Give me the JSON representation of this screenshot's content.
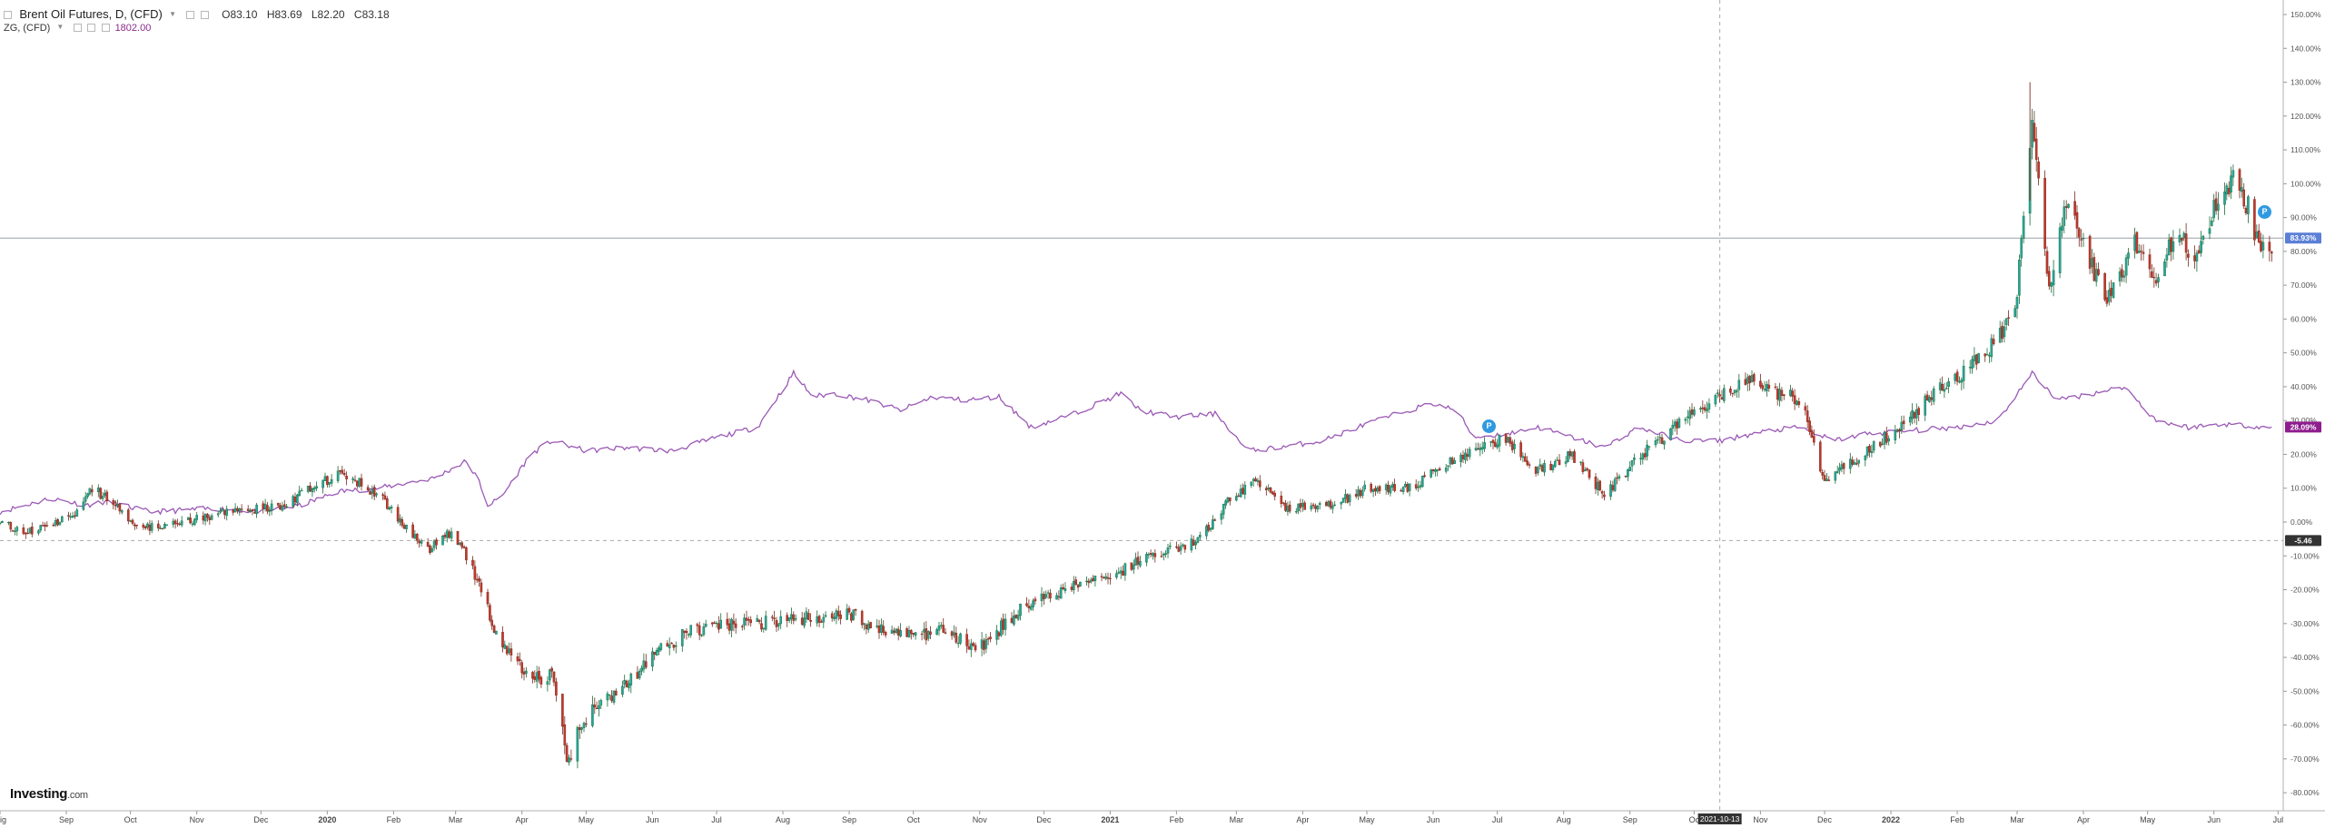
{
  "legend": {
    "instrument": "Brent Oil Futures, D, (CFD)",
    "open": "O83.10",
    "high": "H83.69",
    "low": "L82.20",
    "close": "C83.18",
    "compare_symbol": "ZG, (CFD)",
    "compare_value": "1802.00"
  },
  "logo": {
    "name": "Investing",
    "suffix": ".com"
  },
  "crosshair_date_label": "2021-10-13",
  "markers": {
    "label": "P"
  },
  "colors": {
    "up": "#26a69a",
    "up_dark": "#1b6b3a",
    "down": "#c0392b",
    "down_dark": "#7a2a1e",
    "compare_line": "#9b59b6",
    "price_badge": "#5b7fd6",
    "compare_badge": "#8e1d8e",
    "baseline_badge": "#333333"
  },
  "chart_data": {
    "type": "line",
    "title": "",
    "xlabel": "",
    "ylabel": "",
    "y_unit": "percent change",
    "ylim": [
      -80,
      150
    ],
    "y_ticks": [
      "150.00%",
      "140.00%",
      "130.00%",
      "120.00%",
      "110.00%",
      "100.00%",
      "90.00%",
      "80.00%",
      "70.00%",
      "60.00%",
      "50.00%",
      "40.00%",
      "30.00%",
      "20.00%",
      "10.00%",
      "0.00%",
      "-10.00%",
      "-20.00%",
      "-30.00%",
      "-40.00%",
      "-50.00%",
      "-60.00%",
      "-70.00%",
      "-80.00%"
    ],
    "x_range": [
      "2019-08-01",
      "2022-06-30"
    ],
    "x_ticks": [
      {
        "label": "ig",
        "date": "2019-08-01"
      },
      {
        "label": "Sep",
        "date": "2019-09-01"
      },
      {
        "label": "Oct",
        "date": "2019-10-01"
      },
      {
        "label": "Nov",
        "date": "2019-11-01"
      },
      {
        "label": "Dec",
        "date": "2019-12-01"
      },
      {
        "label": "2020",
        "date": "2020-01-01"
      },
      {
        "label": "Feb",
        "date": "2020-02-01"
      },
      {
        "label": "Mar",
        "date": "2020-03-01"
      },
      {
        "label": "Apr",
        "date": "2020-04-01"
      },
      {
        "label": "May",
        "date": "2020-05-01"
      },
      {
        "label": "Jun",
        "date": "2020-06-01"
      },
      {
        "label": "Jul",
        "date": "2020-07-01"
      },
      {
        "label": "Aug",
        "date": "2020-08-01"
      },
      {
        "label": "Sep",
        "date": "2020-09-01"
      },
      {
        "label": "Oct",
        "date": "2020-10-01"
      },
      {
        "label": "Nov",
        "date": "2020-11-01"
      },
      {
        "label": "Dec",
        "date": "2020-12-01"
      },
      {
        "label": "2021",
        "date": "2021-01-01"
      },
      {
        "label": "Feb",
        "date": "2021-02-01"
      },
      {
        "label": "Mar",
        "date": "2021-03-01"
      },
      {
        "label": "Apr",
        "date": "2021-04-01"
      },
      {
        "label": "May",
        "date": "2021-05-01"
      },
      {
        "label": "Jun",
        "date": "2021-06-01"
      },
      {
        "label": "Jul",
        "date": "2021-07-01"
      },
      {
        "label": "Aug",
        "date": "2021-08-01"
      },
      {
        "label": "Sep",
        "date": "2021-09-01"
      },
      {
        "label": "Oc",
        "date": "2021-10-01"
      },
      {
        "label": "Nov",
        "date": "2021-11-01"
      },
      {
        "label": "Dec",
        "date": "2021-12-01"
      },
      {
        "label": "2022",
        "date": "2022-01-01"
      },
      {
        "label": "Feb",
        "date": "2022-02-01"
      },
      {
        "label": "Mar",
        "date": "2022-03-01"
      },
      {
        "label": "Apr",
        "date": "2022-04-01"
      },
      {
        "label": "May",
        "date": "2022-05-01"
      },
      {
        "label": "Jun",
        "date": "2022-06-01"
      },
      {
        "label": "Jul",
        "date": "2022-07-01"
      }
    ],
    "bold_x_ticks": [
      "2020",
      "2021",
      "2022"
    ],
    "badges": {
      "last_price": {
        "label": "83.93%",
        "value": 83.93
      },
      "compare_last": {
        "label": "28.09%",
        "value": 28.09
      },
      "baseline": {
        "label": "-5.46",
        "value": -5.46
      }
    },
    "crosshair_date": "2021-10-13",
    "grid": false,
    "series": [
      {
        "kind": "candlestick",
        "anchors": [
          [
            "2019-08-01",
            0
          ],
          [
            "2019-08-15",
            -3
          ],
          [
            "2019-09-05",
            2
          ],
          [
            "2019-09-13",
            10
          ],
          [
            "2019-09-20",
            7
          ],
          [
            "2019-10-05",
            -2
          ],
          [
            "2019-10-25",
            0
          ],
          [
            "2019-11-15",
            3
          ],
          [
            "2019-12-10",
            5
          ],
          [
            "2019-12-25",
            10
          ],
          [
            "2020-01-06",
            14
          ],
          [
            "2020-01-15",
            12
          ],
          [
            "2020-01-25",
            8
          ],
          [
            "2020-02-08",
            -3
          ],
          [
            "2020-02-18",
            -8
          ],
          [
            "2020-02-28",
            -3
          ],
          [
            "2020-03-06",
            -10
          ],
          [
            "2020-03-14",
            -22
          ],
          [
            "2020-03-22",
            -36
          ],
          [
            "2020-03-31",
            -42
          ],
          [
            "2020-04-10",
            -46
          ],
          [
            "2020-04-15",
            -45
          ],
          [
            "2020-04-22",
            -70
          ],
          [
            "2020-05-01",
            -58
          ],
          [
            "2020-05-15",
            -50
          ],
          [
            "2020-06-01",
            -40
          ],
          [
            "2020-06-15",
            -33
          ],
          [
            "2020-07-01",
            -31
          ],
          [
            "2020-07-20",
            -30
          ],
          [
            "2020-08-15",
            -28
          ],
          [
            "2020-09-01",
            -27
          ],
          [
            "2020-09-15",
            -32
          ],
          [
            "2020-10-01",
            -34
          ],
          [
            "2020-10-15",
            -32
          ],
          [
            "2020-11-01",
            -37
          ],
          [
            "2020-11-20",
            -26
          ],
          [
            "2020-12-10",
            -20
          ],
          [
            "2021-01-01",
            -16
          ],
          [
            "2021-01-20",
            -10
          ],
          [
            "2021-02-10",
            -6
          ],
          [
            "2021-02-25",
            6
          ],
          [
            "2021-03-10",
            13
          ],
          [
            "2021-03-25",
            4
          ],
          [
            "2021-04-15",
            5
          ],
          [
            "2021-05-01",
            10
          ],
          [
            "2021-05-20",
            10
          ],
          [
            "2021-06-15",
            20
          ],
          [
            "2021-07-05",
            25
          ],
          [
            "2021-07-20",
            15
          ],
          [
            "2021-08-05",
            20
          ],
          [
            "2021-08-20",
            8
          ],
          [
            "2021-09-10",
            22
          ],
          [
            "2021-10-01",
            32
          ],
          [
            "2021-10-25",
            42
          ],
          [
            "2021-11-10",
            38
          ],
          [
            "2021-11-20",
            36
          ],
          [
            "2021-12-01",
            12
          ],
          [
            "2021-12-15",
            18
          ],
          [
            "2022-01-05",
            28
          ],
          [
            "2022-01-25",
            40
          ],
          [
            "2022-02-15",
            50
          ],
          [
            "2022-02-28",
            62
          ],
          [
            "2022-03-08",
            118
          ],
          [
            "2022-03-16",
            70
          ],
          [
            "2022-03-24",
            95
          ],
          [
            "2022-04-01",
            82
          ],
          [
            "2022-04-12",
            65
          ],
          [
            "2022-04-25",
            82
          ],
          [
            "2022-05-05",
            70
          ],
          [
            "2022-05-15",
            88
          ],
          [
            "2022-05-22",
            76
          ],
          [
            "2022-06-01",
            92
          ],
          [
            "2022-06-10",
            102
          ],
          [
            "2022-06-18",
            92
          ],
          [
            "2022-06-22",
            80
          ],
          [
            "2022-06-28",
            82
          ]
        ]
      },
      {
        "kind": "line",
        "anchors": [
          [
            "2019-08-01",
            3
          ],
          [
            "2019-08-25",
            7
          ],
          [
            "2019-09-10",
            5
          ],
          [
            "2019-09-20",
            6
          ],
          [
            "2019-10-10",
            3
          ],
          [
            "2019-11-10",
            4
          ],
          [
            "2019-12-01",
            3
          ],
          [
            "2019-12-20",
            5
          ],
          [
            "2020-01-06",
            9
          ],
          [
            "2020-01-25",
            10
          ],
          [
            "2020-02-20",
            13
          ],
          [
            "2020-03-06",
            18
          ],
          [
            "2020-03-12",
            12
          ],
          [
            "2020-03-16",
            5
          ],
          [
            "2020-03-22",
            7
          ],
          [
            "2020-04-05",
            20
          ],
          [
            "2020-04-15",
            24
          ],
          [
            "2020-05-01",
            21
          ],
          [
            "2020-05-20",
            22
          ],
          [
            "2020-06-10",
            21
          ],
          [
            "2020-07-01",
            25
          ],
          [
            "2020-07-20",
            28
          ],
          [
            "2020-08-06",
            44
          ],
          [
            "2020-08-15",
            37
          ],
          [
            "2020-08-25",
            38
          ],
          [
            "2020-09-10",
            36
          ],
          [
            "2020-09-25",
            33
          ],
          [
            "2020-10-10",
            37
          ],
          [
            "2020-10-25",
            36
          ],
          [
            "2020-11-10",
            37
          ],
          [
            "2020-11-25",
            28
          ],
          [
            "2020-12-15",
            32
          ],
          [
            "2021-01-06",
            38
          ],
          [
            "2021-01-15",
            33
          ],
          [
            "2021-02-01",
            31
          ],
          [
            "2021-02-20",
            32
          ],
          [
            "2021-03-06",
            21
          ],
          [
            "2021-03-20",
            22
          ],
          [
            "2021-04-10",
            24
          ],
          [
            "2021-05-01",
            29
          ],
          [
            "2021-05-20",
            33
          ],
          [
            "2021-06-01",
            35
          ],
          [
            "2021-06-12",
            33
          ],
          [
            "2021-06-20",
            25
          ],
          [
            "2021-07-05",
            26
          ],
          [
            "2021-07-20",
            28
          ],
          [
            "2021-08-05",
            25
          ],
          [
            "2021-08-20",
            22
          ],
          [
            "2021-09-05",
            28
          ],
          [
            "2021-09-25",
            24
          ],
          [
            "2021-10-13",
            24
          ],
          [
            "2021-11-05",
            27
          ],
          [
            "2021-11-20",
            28
          ],
          [
            "2021-12-05",
            24
          ],
          [
            "2021-12-20",
            26
          ],
          [
            "2022-01-10",
            27
          ],
          [
            "2022-02-01",
            28
          ],
          [
            "2022-02-20",
            30
          ],
          [
            "2022-03-08",
            44
          ],
          [
            "2022-03-20",
            36
          ],
          [
            "2022-04-05",
            38
          ],
          [
            "2022-04-20",
            40
          ],
          [
            "2022-05-05",
            30
          ],
          [
            "2022-05-20",
            28
          ],
          [
            "2022-06-05",
            29
          ],
          [
            "2022-06-28",
            28
          ]
        ]
      }
    ]
  }
}
